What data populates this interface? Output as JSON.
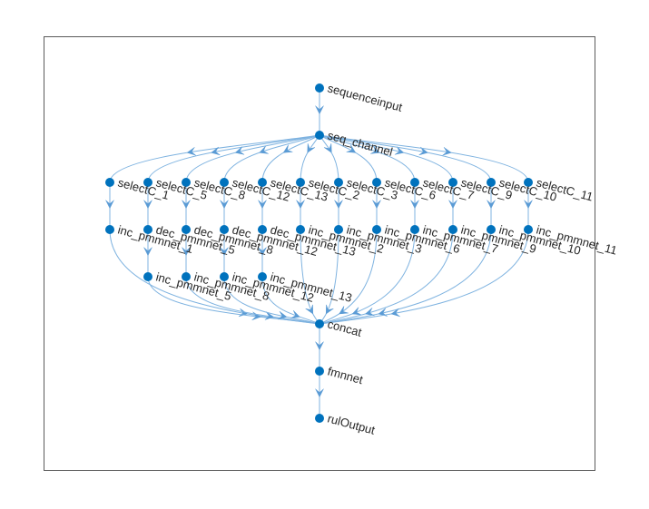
{
  "graph": {
    "nodes": [
      {
        "id": "sequenceinput",
        "label": "sequenceinput"
      },
      {
        "id": "seq_channel",
        "label": "seq_channel"
      },
      {
        "id": "selectC_1",
        "label": "selectC_1"
      },
      {
        "id": "selectC_5",
        "label": "selectC_5"
      },
      {
        "id": "selectC_8",
        "label": "selectC_8"
      },
      {
        "id": "selectC_12",
        "label": "selectC_12"
      },
      {
        "id": "selectC_13",
        "label": "selectC_13"
      },
      {
        "id": "selectC_2",
        "label": "selectC_2"
      },
      {
        "id": "selectC_3",
        "label": "selectC_3"
      },
      {
        "id": "selectC_6",
        "label": "selectC_6"
      },
      {
        "id": "selectC_7",
        "label": "selectC_7"
      },
      {
        "id": "selectC_9",
        "label": "selectC_9"
      },
      {
        "id": "selectC_10",
        "label": "selectC_10"
      },
      {
        "id": "selectC_11",
        "label": "selectC_11"
      },
      {
        "id": "inc_pmmnet_1",
        "label": "inc_pmmnet_1"
      },
      {
        "id": "dec_pmmnet_5",
        "label": "dec_pmmnet_5"
      },
      {
        "id": "dec_pmmnet_8",
        "label": "dec_pmmnet_8"
      },
      {
        "id": "dec_pmmnet_12",
        "label": "dec_pmmnet_12"
      },
      {
        "id": "dec_pmmnet_13",
        "label": "dec_pmmnet_13"
      },
      {
        "id": "inc_pmmnet_2",
        "label": "inc_pmmnet_2"
      },
      {
        "id": "inc_pmmnet_3",
        "label": "inc_pmmnet_3"
      },
      {
        "id": "inc_pmmnet_6",
        "label": "inc_pmmnet_6"
      },
      {
        "id": "inc_pmmnet_7",
        "label": "inc_pmmnet_7"
      },
      {
        "id": "inc_pmmnet_9",
        "label": "inc_pmmnet_9"
      },
      {
        "id": "inc_pmmnet_10",
        "label": "inc_pmmnet_10"
      },
      {
        "id": "inc_pmmnet_11",
        "label": "inc_pmmnet_11"
      },
      {
        "id": "inc_pmmnet_5",
        "label": "inc_pmmnet_5"
      },
      {
        "id": "inc_pmmnet_8",
        "label": "inc_pmmnet_8"
      },
      {
        "id": "inc_pmmnet_12",
        "label": "inc_pmmnet_12"
      },
      {
        "id": "inc_pmmnet_13",
        "label": "inc_pmmnet_13"
      },
      {
        "id": "concat",
        "label": "concat"
      },
      {
        "id": "fmnnet",
        "label": "fmnnet"
      },
      {
        "id": "rulOutput",
        "label": "rulOutput"
      }
    ],
    "edges": [
      [
        "sequenceinput",
        "seq_channel"
      ],
      [
        "seq_channel",
        "selectC_1"
      ],
      [
        "seq_channel",
        "selectC_5"
      ],
      [
        "seq_channel",
        "selectC_8"
      ],
      [
        "seq_channel",
        "selectC_12"
      ],
      [
        "seq_channel",
        "selectC_13"
      ],
      [
        "seq_channel",
        "selectC_2"
      ],
      [
        "seq_channel",
        "selectC_3"
      ],
      [
        "seq_channel",
        "selectC_6"
      ],
      [
        "seq_channel",
        "selectC_7"
      ],
      [
        "seq_channel",
        "selectC_9"
      ],
      [
        "seq_channel",
        "selectC_10"
      ],
      [
        "seq_channel",
        "selectC_11"
      ],
      [
        "selectC_1",
        "inc_pmmnet_1"
      ],
      [
        "selectC_5",
        "dec_pmmnet_5"
      ],
      [
        "selectC_8",
        "dec_pmmnet_8"
      ],
      [
        "selectC_12",
        "dec_pmmnet_12"
      ],
      [
        "selectC_13",
        "dec_pmmnet_13"
      ],
      [
        "selectC_2",
        "inc_pmmnet_2"
      ],
      [
        "selectC_3",
        "inc_pmmnet_3"
      ],
      [
        "selectC_6",
        "inc_pmmnet_6"
      ],
      [
        "selectC_7",
        "inc_pmmnet_7"
      ],
      [
        "selectC_9",
        "inc_pmmnet_9"
      ],
      [
        "selectC_10",
        "inc_pmmnet_10"
      ],
      [
        "selectC_11",
        "inc_pmmnet_11"
      ],
      [
        "dec_pmmnet_5",
        "inc_pmmnet_5"
      ],
      [
        "dec_pmmnet_8",
        "inc_pmmnet_8"
      ],
      [
        "dec_pmmnet_12",
        "inc_pmmnet_12"
      ],
      [
        "dec_pmmnet_13",
        "inc_pmmnet_13"
      ],
      [
        "inc_pmmnet_1",
        "concat"
      ],
      [
        "inc_pmmnet_5",
        "concat"
      ],
      [
        "inc_pmmnet_8",
        "concat"
      ],
      [
        "inc_pmmnet_12",
        "concat"
      ],
      [
        "inc_pmmnet_13",
        "concat"
      ],
      [
        "inc_pmmnet_2",
        "concat"
      ],
      [
        "inc_pmmnet_3",
        "concat"
      ],
      [
        "inc_pmmnet_6",
        "concat"
      ],
      [
        "inc_pmmnet_7",
        "concat"
      ],
      [
        "inc_pmmnet_9",
        "concat"
      ],
      [
        "inc_pmmnet_10",
        "concat"
      ],
      [
        "inc_pmmnet_11",
        "concat"
      ],
      [
        "concat",
        "fmnnet"
      ],
      [
        "fmnnet",
        "rulOutput"
      ]
    ]
  },
  "colors": {
    "node": "#0072bd",
    "edge": "#7fb3e0",
    "arrow": "#5a9bd5",
    "label": "#262626"
  }
}
